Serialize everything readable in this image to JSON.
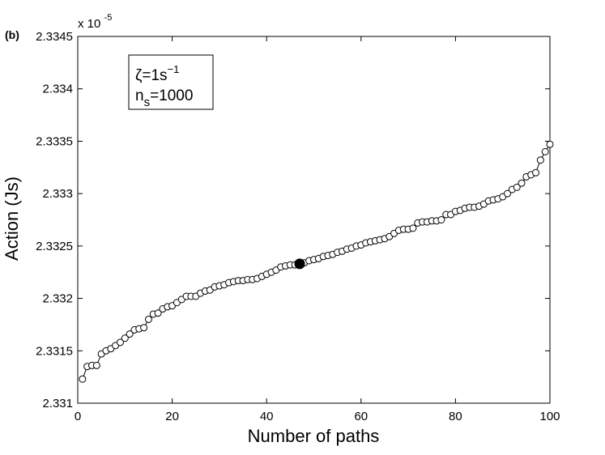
{
  "chart_data": {
    "type": "scatter",
    "panel_label": "(b)",
    "xlabel": "Number of paths",
    "ylabel": "Action (Js)",
    "xlim": [
      0,
      100
    ],
    "ylim": [
      2.331,
      2.3345
    ],
    "x_ticks": [
      0,
      20,
      40,
      60,
      80,
      100
    ],
    "x_tick_labels": [
      "0",
      "20",
      "40",
      "60",
      "80",
      "100"
    ],
    "y_ticks": [
      2.331,
      2.3315,
      2.332,
      2.3325,
      2.333,
      2.3335,
      2.334,
      2.3345
    ],
    "y_tick_labels": [
      "2.331",
      "2.3315",
      "2.332",
      "2.3325",
      "2.333",
      "2.3335",
      "2.334",
      "2.3345"
    ],
    "y_multiplier": {
      "base": "x 10",
      "exponent": "-5"
    },
    "grid": false,
    "legend": {
      "placement": "top-left",
      "line1": {
        "symbol": "ζ",
        "text": "=1s",
        "sup": "−1"
      },
      "line2": {
        "symbol": "n",
        "sub": "s",
        "text": "=1000"
      }
    },
    "series": [
      {
        "marker": "open-circle",
        "line": "solid",
        "color": "#000000",
        "x": [
          1,
          2,
          3,
          4,
          5,
          6,
          7,
          8,
          9,
          10,
          11,
          12,
          13,
          14,
          15,
          16,
          17,
          18,
          19,
          20,
          21,
          22,
          23,
          24,
          25,
          26,
          27,
          28,
          29,
          30,
          31,
          32,
          33,
          34,
          35,
          36,
          37,
          38,
          39,
          40,
          41,
          42,
          43,
          44,
          45,
          46,
          47,
          48,
          49,
          50,
          51,
          52,
          53,
          54,
          55,
          56,
          57,
          58,
          59,
          60,
          61,
          62,
          63,
          64,
          65,
          66,
          67,
          68,
          69,
          70,
          71,
          72,
          73,
          74,
          75,
          76,
          77,
          78,
          79,
          80,
          81,
          82,
          83,
          84,
          85,
          86,
          87,
          88,
          89,
          90,
          91,
          92,
          93,
          94,
          95,
          96,
          97,
          98,
          99,
          100
        ],
        "y": [
          2.33123,
          2.33135,
          2.33136,
          2.33136,
          2.33147,
          2.3315,
          2.33152,
          2.33155,
          2.33158,
          2.33162,
          2.33166,
          2.3317,
          2.33171,
          2.33172,
          2.3318,
          2.33185,
          2.33186,
          2.3319,
          2.33192,
          2.33193,
          2.33196,
          2.33199,
          2.33202,
          2.33202,
          2.33202,
          2.33205,
          2.33207,
          2.33208,
          2.33211,
          2.33212,
          2.33213,
          2.33215,
          2.33216,
          2.33217,
          2.33217,
          2.33218,
          2.33218,
          2.33219,
          2.33221,
          2.33223,
          2.33225,
          2.33227,
          2.3323,
          2.33231,
          2.33232,
          2.33232,
          2.33233,
          2.33234,
          2.33236,
          2.33237,
          2.33238,
          2.3324,
          2.33241,
          2.33242,
          2.33244,
          2.33245,
          2.33247,
          2.33248,
          2.3325,
          2.33251,
          2.33253,
          2.33254,
          2.33255,
          2.33256,
          2.33257,
          2.33259,
          2.33262,
          2.33265,
          2.33266,
          2.33266,
          2.33267,
          2.33272,
          2.33273,
          2.33273,
          2.33274,
          2.33274,
          2.33275,
          2.3328,
          2.3328,
          2.33283,
          2.33284,
          2.33286,
          2.33287,
          2.33287,
          2.33288,
          2.3329,
          2.33293,
          2.33294,
          2.33295,
          2.33297,
          2.333,
          2.33304,
          2.33306,
          2.3331,
          2.33316,
          2.33318,
          2.3332,
          2.33332,
          2.3334,
          2.33347
        ]
      }
    ],
    "highlight_point": {
      "x": 47,
      "y": 2.33233,
      "marker": "filled-circle"
    }
  }
}
